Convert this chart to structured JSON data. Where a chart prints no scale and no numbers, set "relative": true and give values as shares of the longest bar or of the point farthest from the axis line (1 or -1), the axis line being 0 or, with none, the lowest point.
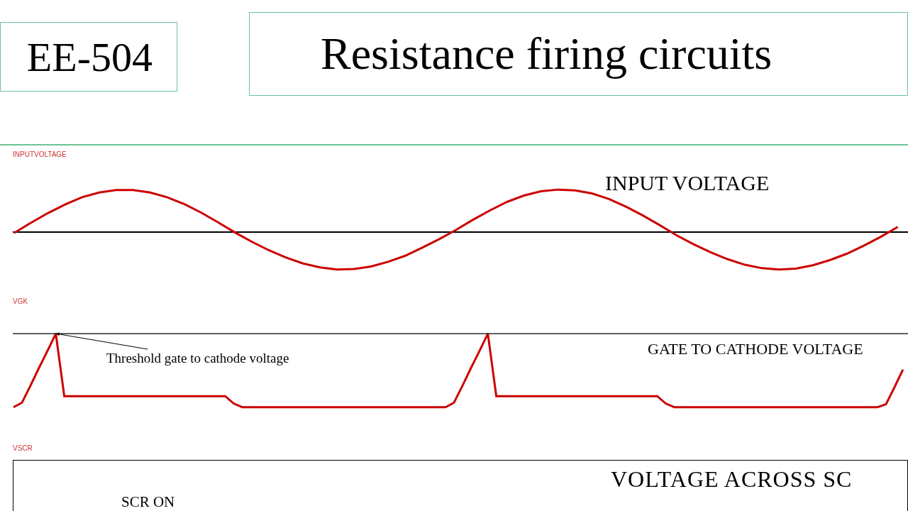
{
  "chart_data": [
    {
      "type": "line",
      "title": "INPUTVOLTAGE",
      "relative": true,
      "color": "#cc0000",
      "annotations": [
        "EE-504",
        "Resistance firing circuits",
        "INPUT VOLTAGE"
      ],
      "categories": [
        null,
        null,
        null,
        null,
        null,
        null,
        null,
        null,
        null,
        null,
        null,
        null,
        null,
        null,
        null,
        null,
        null,
        null,
        null,
        null,
        null,
        null,
        null,
        null,
        null,
        null,
        null,
        null,
        null,
        null,
        null,
        null,
        null,
        null,
        null,
        null,
        null,
        null,
        null,
        null,
        null,
        null,
        null,
        null,
        null,
        null,
        null,
        null,
        null,
        null,
        null,
        null,
        null
      ],
      "values": [
        -0.02,
        0.22,
        0.45,
        0.65,
        0.82,
        0.93,
        0.99,
        0.99,
        0.93,
        0.82,
        0.66,
        0.46,
        0.23,
        -0.01,
        -0.23,
        -0.43,
        -0.6,
        -0.74,
        -0.83,
        -0.88,
        -0.87,
        -0.81,
        -0.7,
        -0.56,
        -0.37,
        -0.17,
        0.05,
        0.29,
        0.51,
        0.71,
        0.86,
        0.96,
        1,
        0.98,
        0.91,
        0.78,
        0.6,
        0.39,
        0.16,
        -0.08,
        -0.29,
        -0.48,
        -0.64,
        -0.77,
        -0.85,
        -0.88,
        -0.86,
        -0.78,
        -0.66,
        -0.51,
        -0.32,
        -0.11,
        0.12
      ]
    },
    {
      "type": "line",
      "title": "VGK",
      "relative": true,
      "color": "#cc0000",
      "annotations": [
        {
          "text": "Threshold gate to cathode voltage",
          "y": 1
        },
        "GATE TO CATHODE VOLTAGE"
      ],
      "ref_lines": [
        {
          "axis": "y",
          "value": 1,
          "color": "#000000"
        }
      ],
      "categories": [
        null,
        null,
        null,
        null,
        null,
        null,
        null,
        null,
        null,
        null,
        null,
        null,
        null,
        null,
        null,
        null,
        null,
        null,
        null,
        null,
        null,
        null,
        null,
        null,
        null,
        null,
        null,
        null,
        null,
        null,
        null,
        null,
        null,
        null,
        null,
        null,
        null,
        null,
        null,
        null,
        null,
        null,
        null,
        null,
        null,
        null,
        null,
        null,
        null,
        null,
        null,
        null,
        null,
        null,
        null,
        null,
        null,
        null,
        null,
        null,
        null,
        null,
        null,
        null,
        null,
        null,
        null,
        null,
        null,
        null,
        null,
        null,
        null,
        null,
        null,
        null,
        null,
        null,
        null,
        null,
        null,
        null,
        null,
        null,
        null,
        null,
        null,
        null,
        null,
        null,
        null,
        null,
        null,
        null,
        null,
        null,
        null,
        null,
        null,
        null,
        null,
        null,
        null,
        null,
        null,
        null
      ],
      "values": [
        0,
        0.06,
        0.29,
        0.53,
        0.76,
        1,
        0.15,
        0.15,
        0.15,
        0.15,
        0.15,
        0.15,
        0.15,
        0.15,
        0.15,
        0.15,
        0.15,
        0.15,
        0.15,
        0.15,
        0.15,
        0.15,
        0.15,
        0.15,
        0.15,
        0.15,
        0.05,
        0,
        0,
        0,
        0,
        0,
        0,
        0,
        0,
        0,
        0,
        0,
        0,
        0,
        0,
        0,
        0,
        0,
        0,
        0,
        0,
        0,
        0,
        0,
        0,
        0,
        0.06,
        0.29,
        0.53,
        0.76,
        1,
        0.15,
        0.15,
        0.15,
        0.15,
        0.15,
        0.15,
        0.15,
        0.15,
        0.15,
        0.15,
        0.15,
        0.15,
        0.15,
        0.15,
        0.15,
        0.15,
        0.15,
        0.15,
        0.15,
        0.15,
        0.05,
        0,
        0,
        0,
        0,
        0,
        0,
        0,
        0,
        0,
        0,
        0,
        0,
        0,
        0,
        0,
        0,
        0,
        0,
        0,
        0,
        0,
        0,
        0,
        0,
        0,
        0.04,
        0.27,
        0.51
      ]
    },
    {
      "type": "other",
      "title": "VSCR",
      "annotations": [
        "VOLTAGE ACROSS SC",
        "SCR ON"
      ]
    }
  ]
}
